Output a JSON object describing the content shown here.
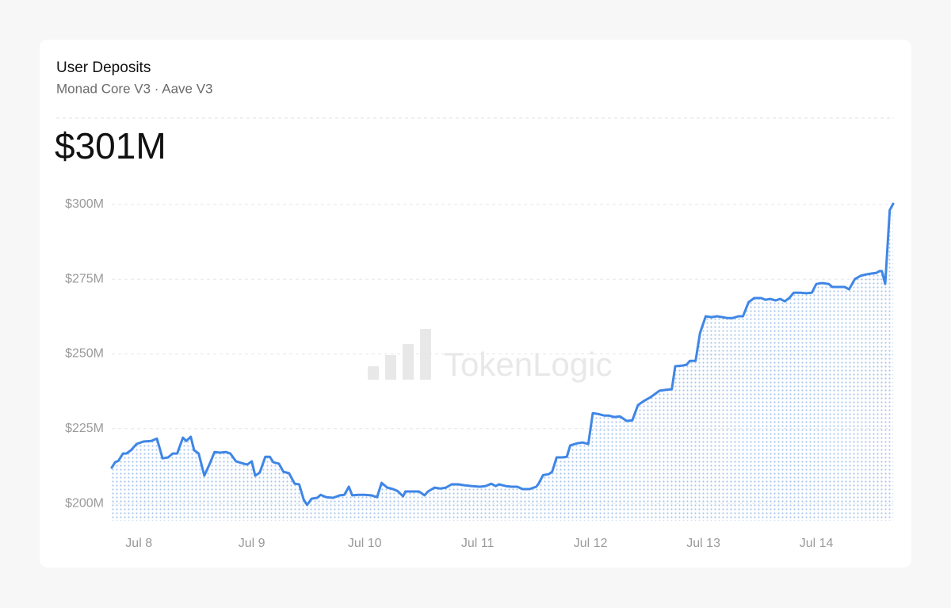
{
  "chart_data": {
    "type": "line",
    "title": "User Deposits",
    "subtitle": "Monad Core V3 · Aave V3",
    "headline": "$301M",
    "watermark": "TokenLogic",
    "color": "#3f86e6",
    "area": true,
    "grid": true,
    "x": [
      7.76,
      7.79,
      7.82,
      7.86,
      7.89,
      7.93,
      7.98,
      8.04,
      8.11,
      8.16,
      8.21,
      8.26,
      8.3,
      8.34,
      8.39,
      8.42,
      8.46,
      8.49,
      8.53,
      8.58,
      8.63,
      8.67,
      8.72,
      8.77,
      8.81,
      8.86,
      8.91,
      8.96,
      9.0,
      9.03,
      9.07,
      9.12,
      9.16,
      9.19,
      9.24,
      9.28,
      9.33,
      9.38,
      9.42,
      9.46,
      9.49,
      9.53,
      9.58,
      9.61,
      9.66,
      9.72,
      9.78,
      9.82,
      9.86,
      9.89,
      9.94,
      10.0,
      10.06,
      10.11,
      10.15,
      10.2,
      10.25,
      10.29,
      10.34,
      10.36,
      10.42,
      10.48,
      10.53,
      10.56,
      10.62,
      10.67,
      10.72,
      10.77,
      10.83,
      10.88,
      10.95,
      11.02,
      11.07,
      11.12,
      11.16,
      11.19,
      11.25,
      11.3,
      11.35,
      11.4,
      11.46,
      11.52,
      11.54,
      11.58,
      11.63,
      11.66,
      11.7,
      11.75,
      11.79,
      11.82,
      11.88,
      11.93,
      11.98,
      12.02,
      12.07,
      12.12,
      12.16,
      12.21,
      12.26,
      12.32,
      12.37,
      12.42,
      12.47,
      12.53,
      12.57,
      12.61,
      12.67,
      12.72,
      12.75,
      12.81,
      12.85,
      12.88,
      12.93,
      12.97,
      13.02,
      13.07,
      13.12,
      13.17,
      13.21,
      13.26,
      13.31,
      13.35,
      13.4,
      13.45,
      13.51,
      13.55,
      13.59,
      13.64,
      13.68,
      13.72,
      13.76,
      13.8,
      13.86,
      13.91,
      13.96,
      14.0,
      14.05,
      14.11,
      14.14,
      14.2,
      14.25,
      14.29,
      14.34,
      14.39,
      14.44,
      14.49,
      14.53,
      14.56,
      14.58,
      14.61,
      14.65,
      14.68
    ],
    "values": [
      212.0,
      213.8,
      214.3,
      216.7,
      216.7,
      217.8,
      219.9,
      220.7,
      220.9,
      221.7,
      215.1,
      215.4,
      216.7,
      216.7,
      222.0,
      220.9,
      222.3,
      217.8,
      216.7,
      209.3,
      213.5,
      217.2,
      217.0,
      217.2,
      216.7,
      214.1,
      213.5,
      213.0,
      214.1,
      209.3,
      210.3,
      215.6,
      215.6,
      213.8,
      213.3,
      210.6,
      210.1,
      206.6,
      206.4,
      201.3,
      199.5,
      201.6,
      201.9,
      202.9,
      202.1,
      201.9,
      202.7,
      202.9,
      205.6,
      202.7,
      202.9,
      202.9,
      202.7,
      202.1,
      206.9,
      205.3,
      204.8,
      204.2,
      202.4,
      204.0,
      204.0,
      204.0,
      202.7,
      204.0,
      205.3,
      205.0,
      205.3,
      206.4,
      206.4,
      206.1,
      205.8,
      205.6,
      205.8,
      206.6,
      205.8,
      206.4,
      205.8,
      205.6,
      205.6,
      204.8,
      204.8,
      205.6,
      206.6,
      209.5,
      209.8,
      210.6,
      215.4,
      215.4,
      215.6,
      219.4,
      220.1,
      220.4,
      219.9,
      230.2,
      229.9,
      229.4,
      229.4,
      228.9,
      229.1,
      227.6,
      227.8,
      232.9,
      234.2,
      235.5,
      236.6,
      237.7,
      238.0,
      238.2,
      245.9,
      246.1,
      246.4,
      247.7,
      247.7,
      257.0,
      262.6,
      262.3,
      262.6,
      262.3,
      262.0,
      262.0,
      262.6,
      262.6,
      267.3,
      268.7,
      268.7,
      268.1,
      268.4,
      267.9,
      268.4,
      267.6,
      268.7,
      270.5,
      270.5,
      270.3,
      270.5,
      273.4,
      273.7,
      273.4,
      272.4,
      272.4,
      272.4,
      271.6,
      275.0,
      276.1,
      276.6,
      276.9,
      277.1,
      277.7,
      277.7,
      273.4,
      298.1,
      300.2
    ],
    "xlim": [
      7.76,
      14.68
    ],
    "xticks": [
      {
        "value": 8,
        "label": "Jul 8"
      },
      {
        "value": 9,
        "label": "Jul 9"
      },
      {
        "value": 10,
        "label": "Jul 10"
      },
      {
        "value": 11,
        "label": "Jul 11"
      },
      {
        "value": 12,
        "label": "Jul 12"
      },
      {
        "value": 13,
        "label": "Jul 13"
      },
      {
        "value": 14,
        "label": "Jul 14"
      }
    ],
    "ylim": [
      194.2,
      300.5
    ],
    "yticks": [
      {
        "value": 200,
        "label": "$200M"
      },
      {
        "value": 225,
        "label": "$225M"
      },
      {
        "value": 250,
        "label": "$250M"
      },
      {
        "value": 275,
        "label": "$275M"
      },
      {
        "value": 300,
        "label": "$300M"
      }
    ]
  }
}
